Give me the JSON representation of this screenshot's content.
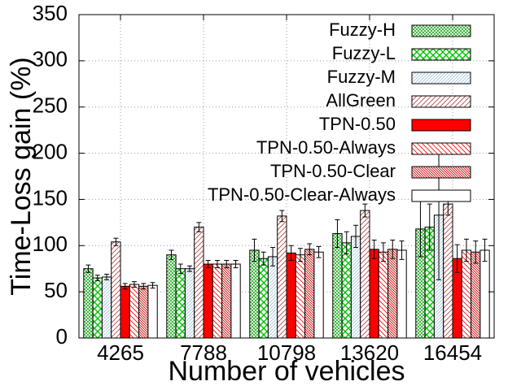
{
  "chart_data": {
    "type": "bar",
    "title": "",
    "xlabel": "Number of vehicles",
    "ylabel": "Time-Loss gain (%)",
    "ylim": [
      0,
      350
    ],
    "yticks": [
      0,
      50,
      100,
      150,
      200,
      250,
      300,
      350
    ],
    "grid": true,
    "legend_position": "top-right",
    "categories": [
      "4265",
      "7788",
      "10798",
      "13620",
      "16454"
    ],
    "series": [
      {
        "name": "Fuzzy-H",
        "pattern": "crosshatch-fine",
        "color": "#00a000",
        "values": [
          75,
          90,
          95,
          113,
          118
        ],
        "errors": [
          4,
          5,
          12,
          15,
          30
        ]
      },
      {
        "name": "Fuzzy-L",
        "pattern": "crosshatch-coarse",
        "color": "#00c000",
        "values": [
          65,
          75,
          86,
          103,
          120
        ],
        "errors": [
          3,
          5,
          7,
          12,
          25
        ]
      },
      {
        "name": "Fuzzy-M",
        "pattern": "diagonal-up-fine",
        "color": "#8fb8d8",
        "values": [
          66,
          75,
          88,
          110,
          133
        ],
        "errors": [
          3,
          3,
          10,
          12,
          70
        ]
      },
      {
        "name": "AllGreen",
        "pattern": "diagonal-up",
        "color": "#b04040",
        "values": [
          104,
          120,
          132,
          138,
          145
        ],
        "errors": [
          4,
          5,
          6,
          7,
          12
        ]
      },
      {
        "name": "TPN-0.50",
        "pattern": "solid",
        "color": "#ff0000",
        "values": [
          56,
          80,
          92,
          96,
          86
        ],
        "errors": [
          3,
          4,
          8,
          10,
          15
        ]
      },
      {
        "name": "TPN-0.50-Always",
        "pattern": "diagonal-down",
        "color": "#ff0000",
        "values": [
          58,
          80,
          90,
          93,
          95
        ],
        "errors": [
          3,
          4,
          7,
          10,
          12
        ]
      },
      {
        "name": "TPN-0.50-Clear",
        "pattern": "diagonal-down-dense",
        "color": "#c00000",
        "values": [
          56,
          80,
          96,
          96,
          93
        ],
        "errors": [
          3,
          4,
          6,
          10,
          12
        ]
      },
      {
        "name": "TPN-0.50-Clear-Always",
        "pattern": "none",
        "color": "#000000",
        "values": [
          57,
          80,
          93,
          95,
          95
        ],
        "errors": [
          3,
          4,
          6,
          10,
          12
        ]
      }
    ]
  }
}
